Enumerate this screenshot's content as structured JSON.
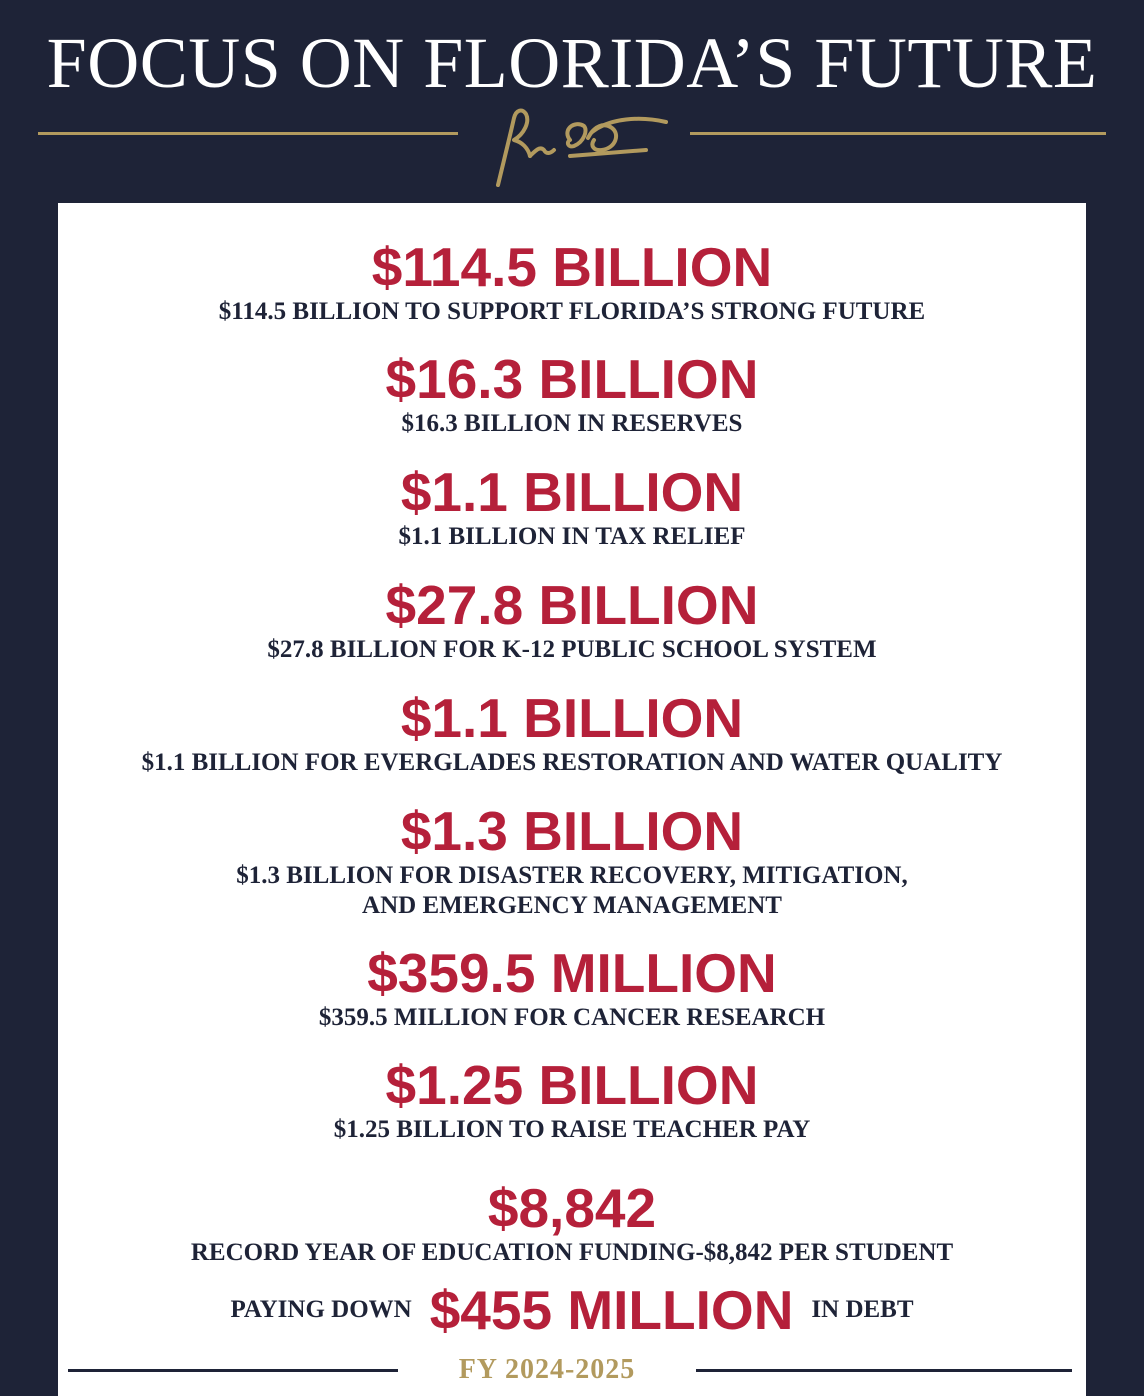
{
  "header": {
    "title": "FOCUS ON FLORIDA’S FUTURE"
  },
  "colors": {
    "navy": "#1e2337",
    "red": "#b5203a",
    "gold": "#b29a5e",
    "white": "#ffffff"
  },
  "items": [
    {
      "amount": "$114.5 BILLION",
      "lines": [
        "$114.5 BILLION TO SUPPORT FLORIDA’S STRONG FUTURE"
      ]
    },
    {
      "amount": "$16.3 BILLION",
      "lines": [
        "$16.3 BILLION IN RESERVES"
      ]
    },
    {
      "amount": "$1.1 BILLION",
      "lines": [
        "$1.1 BILLION IN TAX RELIEF"
      ]
    },
    {
      "amount": "$27.8 BILLION",
      "lines": [
        "$27.8 BILLION FOR K-12 PUBLIC SCHOOL SYSTEM"
      ]
    },
    {
      "amount": "$1.1 BILLION",
      "lines": [
        "$1.1 BILLION FOR EVERGLADES RESTORATION AND WATER QUALITY"
      ]
    },
    {
      "amount": "$1.3 BILLION",
      "lines": [
        "$1.3 BILLION FOR DISASTER RECOVERY, MITIGATION,",
        "AND EMERGENCY MANAGEMENT"
      ]
    },
    {
      "amount": "$359.5 MILLION",
      "lines": [
        "$359.5 MILLION FOR CANCER RESEARCH"
      ]
    },
    {
      "amount": "$1.25 BILLION",
      "lines": [
        "$1.25 BILLION TO RAISE TEACHER PAY"
      ]
    },
    {
      "amount": "$8,842",
      "lines": [
        "RECORD YEAR OF EDUCATION FUNDING-$8,842 PER STUDENT"
      ]
    }
  ],
  "debt": {
    "prefix": "PAYING DOWN",
    "amount": "$455 MILLION",
    "suffix": "IN DEBT"
  },
  "footer": {
    "fiscal_year": "FY 2024-2025"
  }
}
